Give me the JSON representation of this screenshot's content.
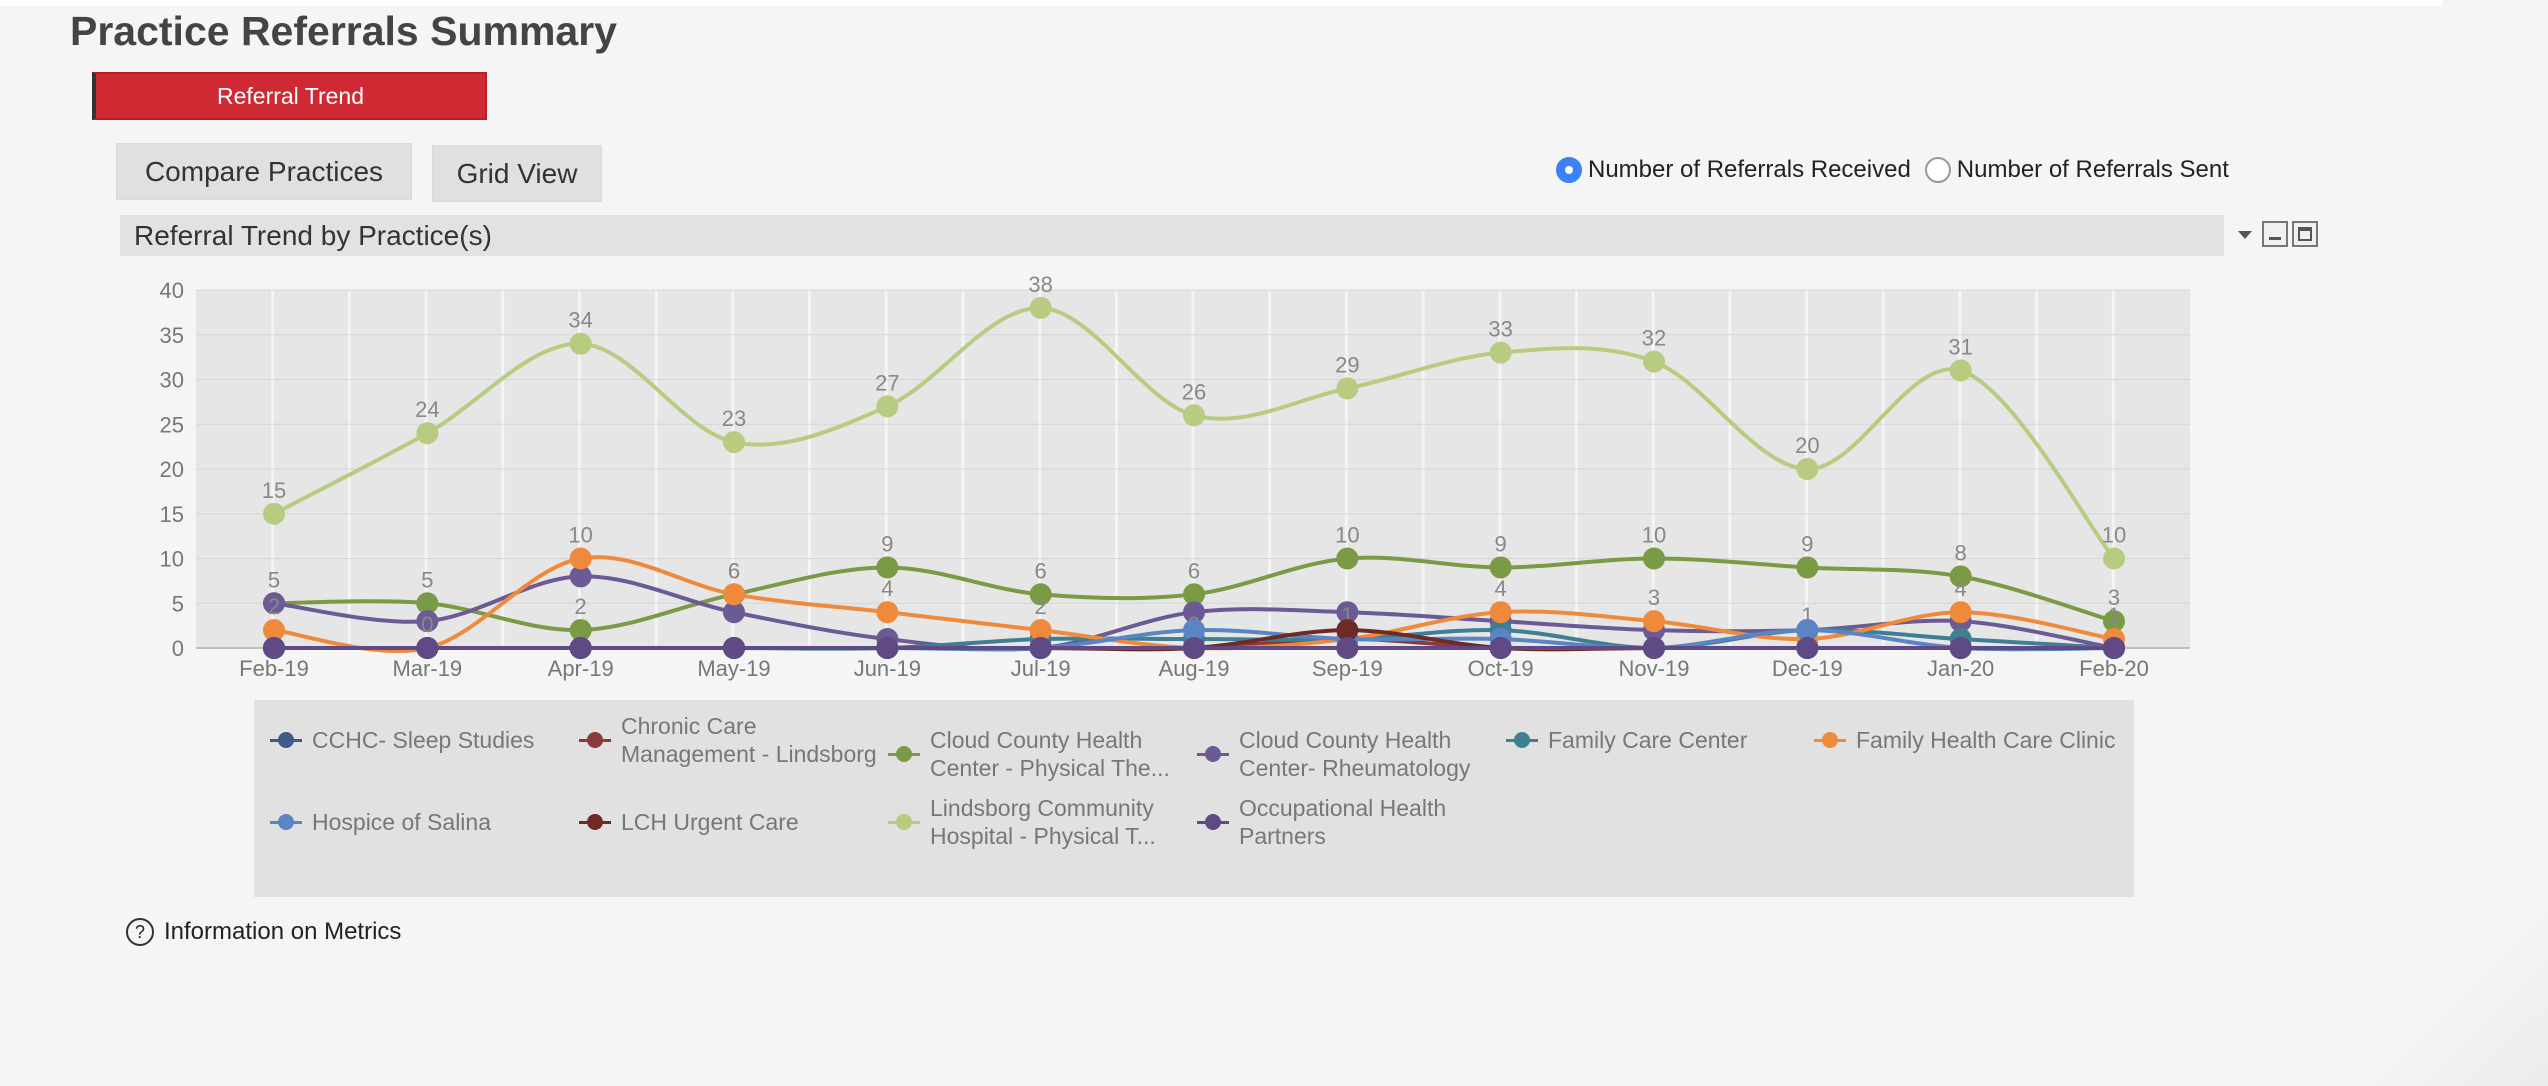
{
  "page": {
    "title": "Practice Referrals Summary"
  },
  "tab": {
    "label": "Referral Trend"
  },
  "buttons": {
    "compare": "Compare Practices",
    "grid": "Grid View"
  },
  "radio": {
    "received": "Number of Referrals Received",
    "sent": "Number of Referrals Sent",
    "selected": "received"
  },
  "panel": {
    "title": "Referral Trend by Practice(s)"
  },
  "info": {
    "label": "Information on Metrics"
  },
  "chart_data": {
    "type": "line",
    "title": "Referral Trend by Practice(s)",
    "xlabel": "",
    "ylabel": "",
    "ylim": [
      0,
      40
    ],
    "yticks": [
      0,
      5,
      10,
      15,
      20,
      25,
      30,
      35,
      40
    ],
    "categories": [
      "Feb-19",
      "Mar-19",
      "Apr-19",
      "May-19",
      "Jun-19",
      "Jul-19",
      "Aug-19",
      "Sep-19",
      "Oct-19",
      "Nov-19",
      "Dec-19",
      "Jan-20",
      "Feb-20"
    ],
    "legend_position": "bottom",
    "series": [
      {
        "name": "CCHC- Sleep Studies",
        "color": "#3d5a8a",
        "labels": false,
        "values": [
          0,
          0,
          0,
          0,
          0,
          0,
          0,
          0,
          0,
          0,
          0,
          0,
          0
        ]
      },
      {
        "name": "Chronic Care Management - Lindsborg",
        "color": "#8b3a3a",
        "labels": false,
        "values": [
          0,
          0,
          0,
          0,
          0,
          0,
          0,
          1,
          0,
          0,
          0,
          0,
          0
        ]
      },
      {
        "name": "Cloud County Health Center - Physical The...",
        "color": "#7a9a45",
        "labels": true,
        "values": [
          5,
          5,
          2,
          6,
          9,
          6,
          6,
          10,
          9,
          10,
          9,
          8,
          3
        ]
      },
      {
        "name": "Cloud County Health Center- Rheumatology",
        "color": "#6c5a94",
        "labels": false,
        "values": [
          5,
          3,
          8,
          4,
          1,
          0,
          4,
          4,
          3,
          2,
          2,
          3,
          0
        ]
      },
      {
        "name": "Family Care Center",
        "color": "#3f7f94",
        "labels": false,
        "values": [
          0,
          0,
          0,
          0,
          0,
          1,
          1,
          1,
          2,
          0,
          2,
          1,
          0
        ]
      },
      {
        "name": "Family Health Care Clinic",
        "color": "#ef8a3c",
        "labels": true,
        "values": [
          2,
          0,
          10,
          6,
          4,
          2,
          0,
          1,
          4,
          3,
          1,
          4,
          1
        ]
      },
      {
        "name": "Hospice of Salina",
        "color": "#5b84c4",
        "labels": false,
        "values": [
          0,
          0,
          0,
          0,
          0,
          0,
          2,
          1,
          1,
          0,
          2,
          0,
          0
        ]
      },
      {
        "name": "LCH Urgent Care",
        "color": "#6e2a25",
        "labels": false,
        "values": [
          0,
          0,
          0,
          0,
          0,
          0,
          0,
          2,
          0,
          0,
          0,
          0,
          0
        ]
      },
      {
        "name": "Lindsborg Community Hospital - Physical T...",
        "color": "#b7cc80",
        "labels": true,
        "values": [
          15,
          24,
          34,
          23,
          27,
          38,
          26,
          29,
          33,
          32,
          20,
          31,
          10
        ]
      },
      {
        "name": "Occupational Health Partners",
        "color": "#5f4a85",
        "labels": false,
        "values": [
          0,
          0,
          0,
          0,
          0,
          0,
          0,
          0,
          0,
          0,
          0,
          0,
          0
        ]
      }
    ]
  }
}
